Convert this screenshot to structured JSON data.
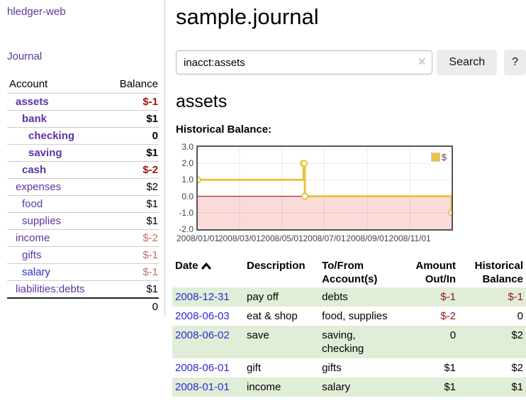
{
  "sidebar": {
    "app_title": "hledger-web",
    "nav_journal": "Journal",
    "columns": {
      "account": "Account",
      "balance": "Balance"
    },
    "accounts": [
      {
        "name": "assets",
        "level": 1,
        "bold": true,
        "balance": "$-1",
        "cls": "negS"
      },
      {
        "name": "bank",
        "level": 2,
        "bold": true,
        "balance": "$1",
        "cls": ""
      },
      {
        "name": "checking",
        "level": 3,
        "bold": true,
        "balance": "0",
        "cls": ""
      },
      {
        "name": "saving",
        "level": 3,
        "bold": true,
        "balance": "$1",
        "cls": ""
      },
      {
        "name": "cash",
        "level": 2,
        "bold": true,
        "balance": "$-2",
        "cls": "negS"
      },
      {
        "name": "expenses",
        "level": 1,
        "bold": false,
        "balance": "$2",
        "cls": ""
      },
      {
        "name": "food",
        "level": 2,
        "bold": false,
        "balance": "$1",
        "cls": ""
      },
      {
        "name": "supplies",
        "level": 2,
        "bold": false,
        "balance": "$1",
        "cls": ""
      },
      {
        "name": "income",
        "level": 1,
        "bold": false,
        "balance": "$-2",
        "cls": "negL"
      },
      {
        "name": "gifts",
        "level": 2,
        "bold": false,
        "balance": "$-1",
        "cls": "negL"
      },
      {
        "name": "salary",
        "level": 2,
        "bold": false,
        "balance": "$-1",
        "cls": "negL",
        "link": "blue"
      },
      {
        "name": "liabilities:debts",
        "level": 1,
        "bold": false,
        "balance": "$1",
        "cls": ""
      }
    ],
    "total": "0"
  },
  "main": {
    "title": "sample.journal",
    "search": {
      "value": "inacct:assets",
      "clear_icon": "✕",
      "button": "Search",
      "help_button": "?"
    },
    "account_heading": "assets",
    "section_label": "Historical Balance:",
    "table": {
      "headers": [
        "Date",
        "Description",
        "To/From\nAccount(s)",
        "Amount\nOut/In",
        "Historical\nBalance"
      ],
      "sort_column": "Date",
      "sort_direction": "ascending",
      "rows": [
        {
          "date": "2008-12-31",
          "description": "pay off",
          "accounts": "debts",
          "amount": "$-1",
          "amount_neg": true,
          "balance": "$-1",
          "balance_neg": true,
          "shaded": true
        },
        {
          "date": "2008-06-03",
          "description": "eat & shop",
          "accounts": "food, supplies",
          "amount": "$-2",
          "amount_neg": true,
          "balance": "0",
          "balance_neg": false,
          "shaded": false
        },
        {
          "date": "2008-06-02",
          "description": "save",
          "accounts": "saving,\nchecking",
          "amount": "0",
          "amount_neg": false,
          "balance": "$2",
          "balance_neg": false,
          "shaded": true
        },
        {
          "date": "2008-06-01",
          "description": "gift",
          "accounts": "gifts",
          "amount": "$1",
          "amount_neg": false,
          "balance": "$2",
          "balance_neg": false,
          "shaded": false
        },
        {
          "date": "2008-01-01",
          "description": "income",
          "accounts": "salary",
          "amount": "$1",
          "amount_neg": false,
          "balance": "$1",
          "balance_neg": false,
          "shaded": true
        }
      ]
    }
  },
  "chart_data": {
    "type": "line",
    "step": true,
    "title": "Historical Balance of assets",
    "series": [
      {
        "name": "$",
        "color": "#edc240",
        "points": [
          {
            "date": "2008-01-01",
            "day": 0,
            "value": 1
          },
          {
            "date": "2008-06-01",
            "day": 152,
            "value": 2
          },
          {
            "date": "2008-06-02",
            "day": 153,
            "value": 2
          },
          {
            "date": "2008-06-03",
            "day": 154,
            "value": 0
          },
          {
            "date": "2008-12-31",
            "day": 365,
            "value": -1
          }
        ]
      }
    ],
    "ylim": [
      -2,
      3
    ],
    "yticks": [
      {
        "label": "3.0",
        "value": 3
      },
      {
        "label": "2.0",
        "value": 2
      },
      {
        "label": "1.0",
        "value": 1
      },
      {
        "label": "0.0",
        "value": 0
      },
      {
        "label": "-1.0",
        "value": -1
      },
      {
        "label": "-2.0",
        "value": -2
      }
    ],
    "xlim_days": [
      0,
      365
    ],
    "xticks": [
      {
        "label": "2008/01/01",
        "day": 0
      },
      {
        "label": "2008/03/01",
        "day": 60
      },
      {
        "label": "2008/05/01",
        "day": 121
      },
      {
        "label": "2008/07/01",
        "day": 182
      },
      {
        "label": "2008/09/01",
        "day": 244
      },
      {
        "label": "2008/11/01",
        "day": 305
      }
    ],
    "legend": {
      "label": "$",
      "position": "top-right"
    },
    "grid": true,
    "zero_line_color": "#8b0000",
    "negative_region_color": "#fbdada",
    "border_color": "#545454"
  }
}
